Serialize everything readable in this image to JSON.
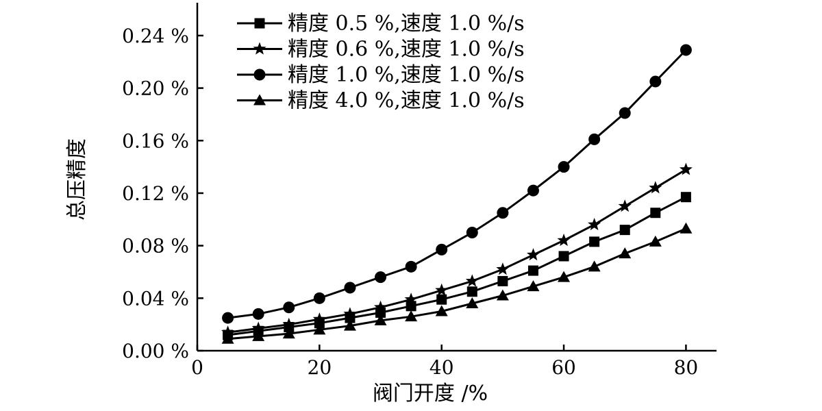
{
  "chart_data": {
    "type": "line",
    "xlabel": "阀门开度 /%",
    "ylabel": "总压精度",
    "xlim": [
      0,
      85
    ],
    "ylim": [
      0,
      0.265
    ],
    "x_ticks": [
      0,
      20,
      40,
      60,
      80
    ],
    "x_tick_labels": [
      "0",
      "20",
      "40",
      "60",
      "80"
    ],
    "y_ticks": [
      0,
      0.04,
      0.08,
      0.12,
      0.16,
      0.2,
      0.24
    ],
    "y_tick_labels": [
      "0.00 %",
      "0.04 %",
      "0.08 %",
      "0.12 %",
      "0.16 %",
      "0.20 %",
      "0.24 %"
    ],
    "grid": false,
    "legend_position": "top-left",
    "x": [
      5,
      10,
      15,
      20,
      25,
      30,
      35,
      40,
      45,
      50,
      55,
      60,
      65,
      70,
      75,
      80
    ],
    "series": [
      {
        "name": "精度 0.5 %,速度 1.0 %/s",
        "marker": "square",
        "values": [
          0.012,
          0.015,
          0.018,
          0.021,
          0.025,
          0.029,
          0.034,
          0.039,
          0.045,
          0.053,
          0.061,
          0.072,
          0.083,
          0.092,
          0.105,
          0.117
        ]
      },
      {
        "name": "精度 0.6 %,速度 1.0 %/s",
        "marker": "star",
        "values": [
          0.014,
          0.017,
          0.02,
          0.024,
          0.028,
          0.033,
          0.039,
          0.046,
          0.053,
          0.062,
          0.073,
          0.084,
          0.096,
          0.11,
          0.124,
          0.138
        ]
      },
      {
        "name": "精度 1.0 %,速度 1.0 %/s",
        "marker": "circle",
        "values": [
          0.025,
          0.028,
          0.033,
          0.04,
          0.048,
          0.056,
          0.064,
          0.077,
          0.09,
          0.105,
          0.122,
          0.14,
          0.161,
          0.181,
          0.205,
          0.229
        ]
      },
      {
        "name": "精度 4.0 %,速度 1.0 %/s",
        "marker": "triangle",
        "values": [
          0.009,
          0.011,
          0.013,
          0.016,
          0.019,
          0.023,
          0.026,
          0.03,
          0.036,
          0.042,
          0.049,
          0.056,
          0.064,
          0.074,
          0.083,
          0.093
        ]
      }
    ]
  }
}
